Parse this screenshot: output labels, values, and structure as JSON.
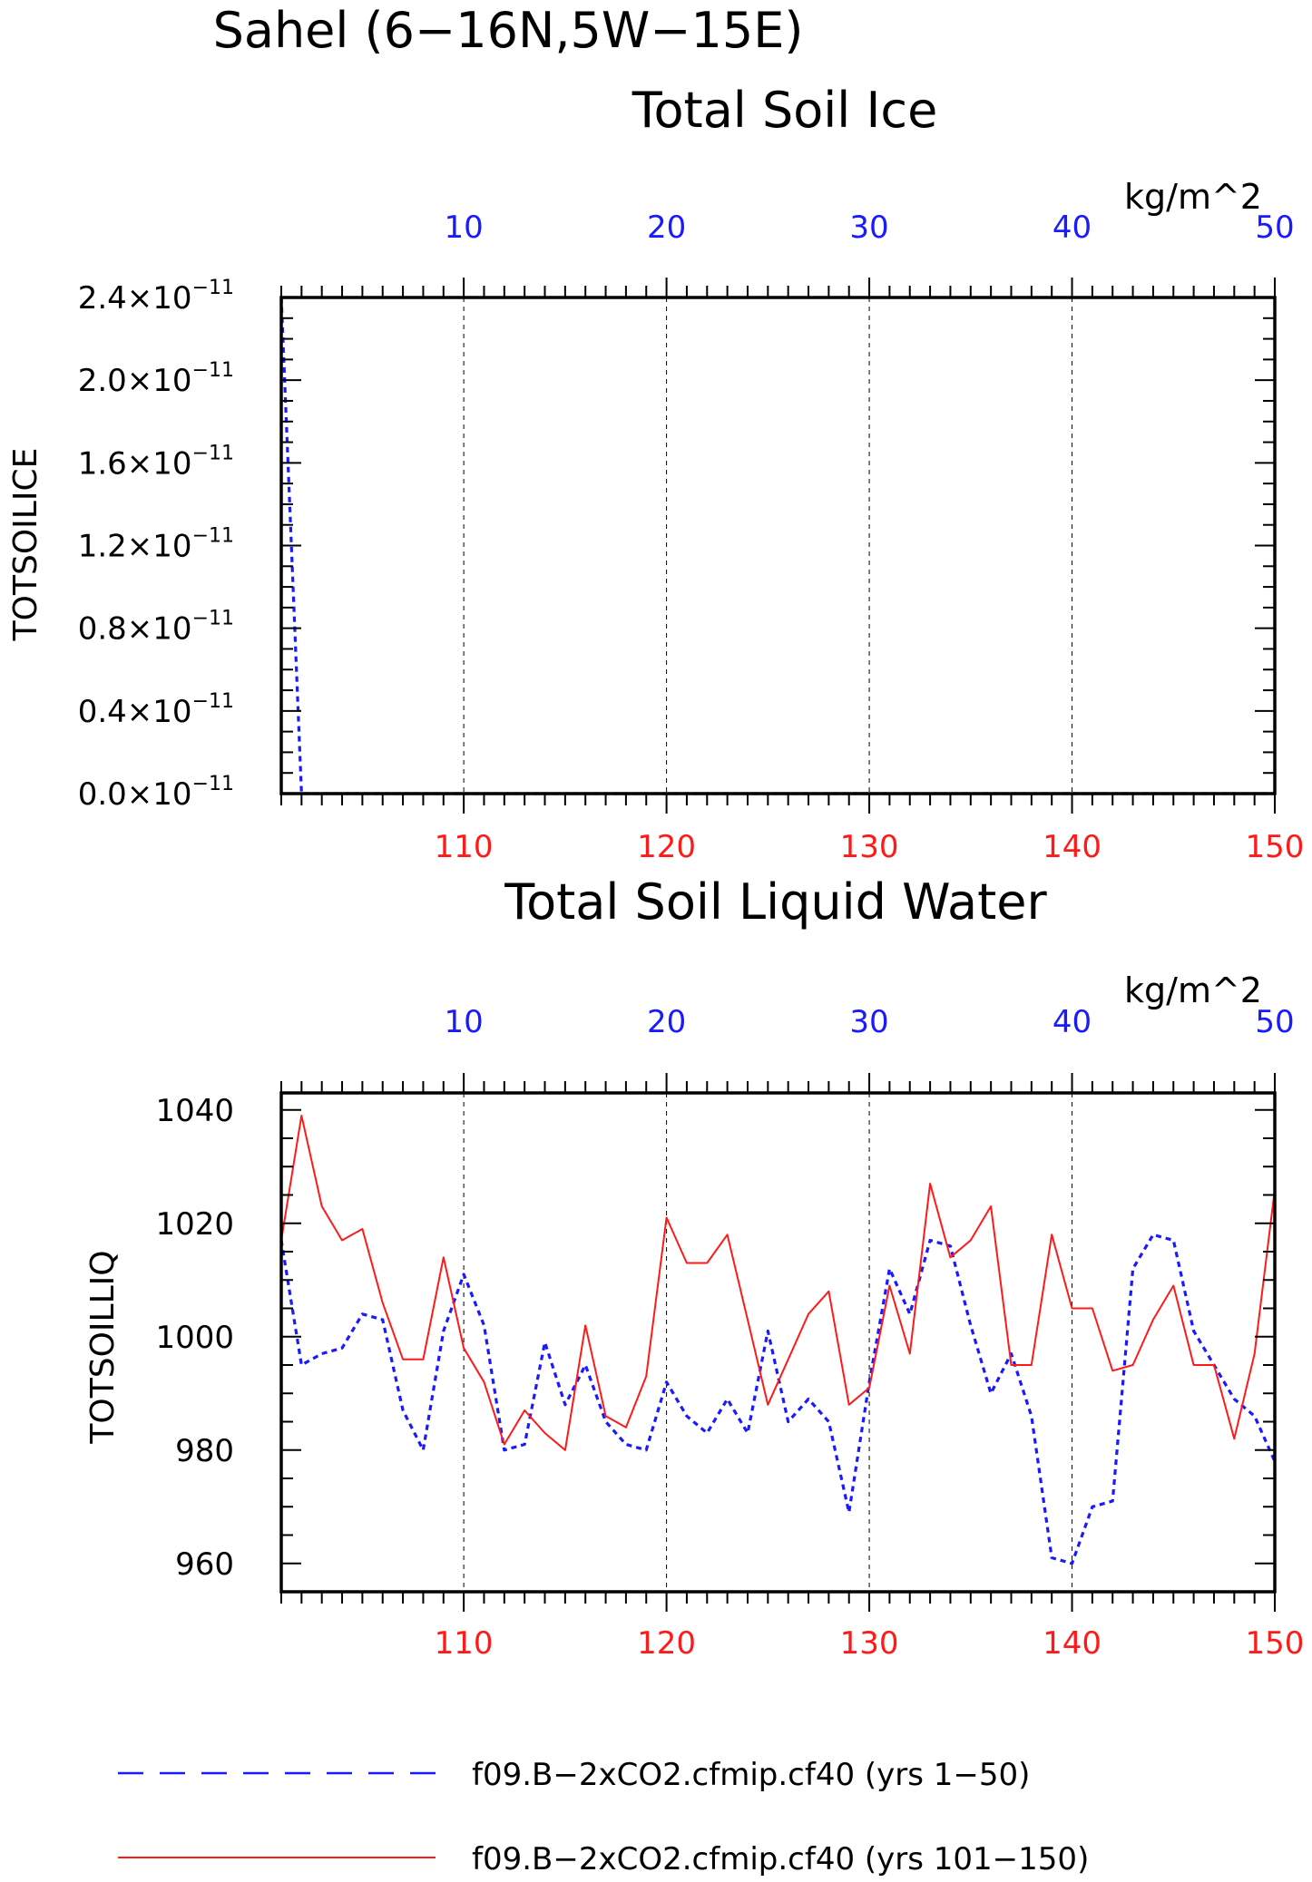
{
  "page": {
    "title": "Sahel (6−16N,5W−15E)"
  },
  "colors": {
    "axis": "#000000",
    "grid": "#000000",
    "top_axis": "#1a1aff",
    "bottom_axis": "#ff1a1a",
    "series_a": "#1a1aff",
    "series_b": "#ff1a1a"
  },
  "legend": {
    "items": [
      {
        "label": "f09.B−2xCO2.cfmip.cf40 (yrs 1−50)",
        "style": "dashed",
        "color": "#1a1aff"
      },
      {
        "label": "f09.B−2xCO2.cfmip.cf40 (yrs 101−150)",
        "style": "solid",
        "color": "#ff1a1a"
      }
    ]
  },
  "chart_data": [
    {
      "type": "line",
      "title": "Total Soil Ice",
      "ylabel": "TOTSOILICE",
      "units": "kg/m^2",
      "y_exponent_label": "×10",
      "y_exponent": "−11",
      "ylim": [
        0.0,
        2.4
      ],
      "yticks": [
        "0.0",
        "0.4",
        "0.8",
        "1.2",
        "1.6",
        "2.0",
        "2.4"
      ],
      "x_top": {
        "range": [
          1,
          50
        ],
        "ticks": [
          "10",
          "20",
          "30",
          "40",
          "50"
        ],
        "color": "#1a1aff"
      },
      "x_bottom": {
        "range": [
          101,
          150
        ],
        "ticks": [
          "110",
          "120",
          "130",
          "140",
          "150"
        ],
        "color": "#ff1a1a"
      },
      "grid_x": true,
      "series": [
        {
          "name": "f09.B−2xCO2.cfmip.cf40 (yrs 1−50)",
          "style": "dashed",
          "axis": "top",
          "x": [
            1,
            2,
            3,
            50
          ],
          "y": [
            2.4,
            0.0,
            0.0,
            0.0
          ]
        },
        {
          "name": "f09.B−2xCO2.cfmip.cf40 (yrs 101−150)",
          "style": "solid",
          "axis": "bottom",
          "x": [
            101,
            150
          ],
          "y": [
            0.0,
            0.0
          ]
        }
      ]
    },
    {
      "type": "line",
      "title": "Total Soil Liquid Water",
      "ylabel": "TOTSOILLIQ",
      "units": "kg/m^2",
      "ylim": [
        955,
        1043
      ],
      "yticks": [
        "960",
        "980",
        "1000",
        "1020",
        "1040"
      ],
      "x_top": {
        "range": [
          1,
          50
        ],
        "ticks": [
          "10",
          "20",
          "30",
          "40",
          "50"
        ],
        "color": "#1a1aff"
      },
      "x_bottom": {
        "range": [
          101,
          150
        ],
        "ticks": [
          "110",
          "120",
          "130",
          "140",
          "150"
        ],
        "color": "#ff1a1a"
      },
      "grid_x": true,
      "series": [
        {
          "name": "f09.B−2xCO2.cfmip.cf40 (yrs 1−50)",
          "style": "dashed",
          "axis": "top",
          "x": [
            1,
            2,
            3,
            4,
            5,
            6,
            7,
            8,
            9,
            10,
            11,
            12,
            13,
            14,
            15,
            16,
            17,
            18,
            19,
            20,
            21,
            22,
            23,
            24,
            25,
            26,
            27,
            28,
            29,
            30,
            31,
            32,
            33,
            34,
            35,
            36,
            37,
            38,
            39,
            40,
            41,
            42,
            43,
            44,
            45,
            46,
            47,
            48,
            49,
            50
          ],
          "y": [
            1017,
            995,
            997,
            998,
            1004,
            1003,
            987,
            980,
            1001,
            1011,
            1002,
            980,
            981,
            999,
            988,
            995,
            985,
            981,
            980,
            992,
            986,
            983,
            989,
            983,
            1001,
            985,
            989,
            985,
            969,
            992,
            1012,
            1004,
            1017,
            1016,
            1002,
            990,
            997,
            986,
            961,
            960,
            970,
            971,
            1012,
            1018,
            1017,
            1001,
            995,
            989,
            986,
            978
          ]
        },
        {
          "name": "f09.B−2xCO2.cfmip.cf40 (yrs 101−150)",
          "style": "solid",
          "axis": "bottom",
          "x": [
            101,
            102,
            103,
            104,
            105,
            106,
            107,
            108,
            109,
            110,
            111,
            112,
            113,
            114,
            115,
            116,
            117,
            118,
            119,
            120,
            121,
            122,
            123,
            124,
            125,
            126,
            127,
            128,
            129,
            130,
            131,
            132,
            133,
            134,
            135,
            136,
            137,
            138,
            139,
            140,
            141,
            142,
            143,
            144,
            145,
            146,
            147,
            148,
            149,
            150
          ],
          "y": [
            1017,
            1039,
            1023,
            1017,
            1019,
            1006,
            996,
            996,
            1014,
            998,
            992,
            981,
            987,
            983,
            980,
            1002,
            986,
            984,
            993,
            1021,
            1013,
            1013,
            1018,
            1003,
            988,
            996,
            1004,
            1008,
            988,
            991,
            1009,
            997,
            1027,
            1014,
            1017,
            1023,
            995,
            995,
            1018,
            1005,
            1005,
            994,
            995,
            1003,
            1009,
            995,
            995,
            982,
            997,
            1026
          ]
        }
      ]
    }
  ]
}
